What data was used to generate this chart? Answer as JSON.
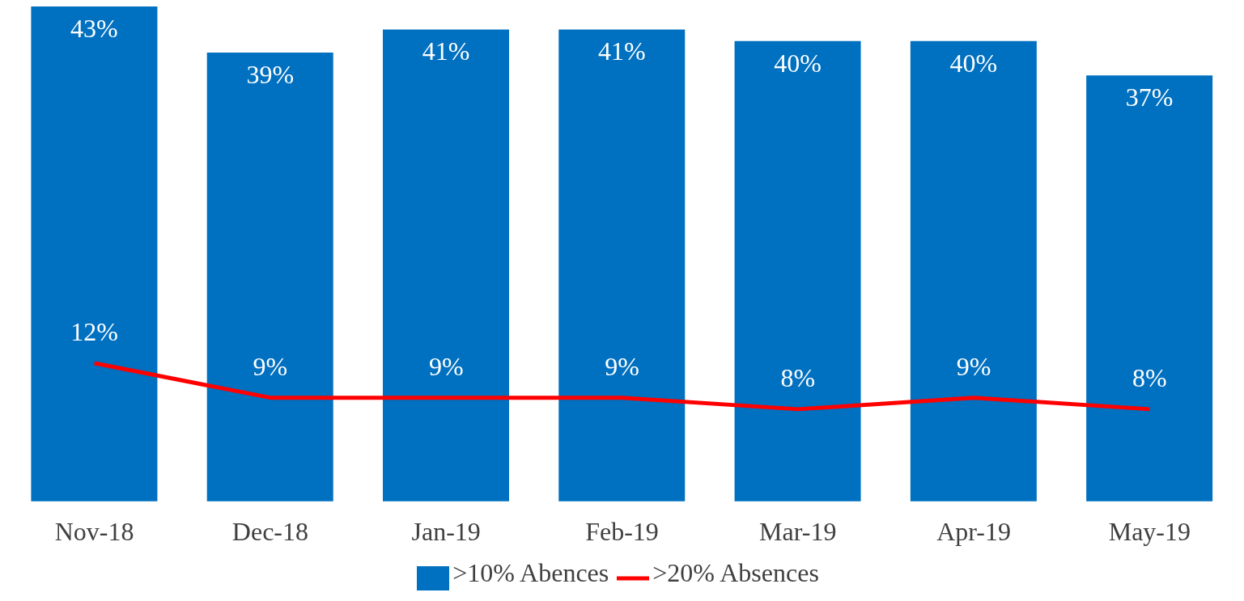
{
  "chart_data": {
    "type": "bar",
    "categories": [
      "Nov-18",
      "Dec-18",
      "Jan-19",
      "Feb-19",
      "Mar-19",
      "Apr-19",
      "May-19"
    ],
    "series": [
      {
        "name": ">10% Abences",
        "color": "#0070c0",
        "values": [
          43,
          39,
          41,
          41,
          40,
          40,
          37
        ],
        "value_labels": [
          "43%",
          "39%",
          "41%",
          "41%",
          "40%",
          "40%",
          "37%"
        ]
      },
      {
        "name": ">20% Absences",
        "type": "line",
        "color": "#ff0000",
        "values": [
          12,
          9,
          9,
          9,
          8,
          9,
          8
        ],
        "value_labels": [
          "12%",
          "9%",
          "9%",
          "9%",
          "8%",
          "9%",
          "8%"
        ]
      }
    ],
    "grid": false,
    "legend": "bottom",
    "marker": "none"
  }
}
